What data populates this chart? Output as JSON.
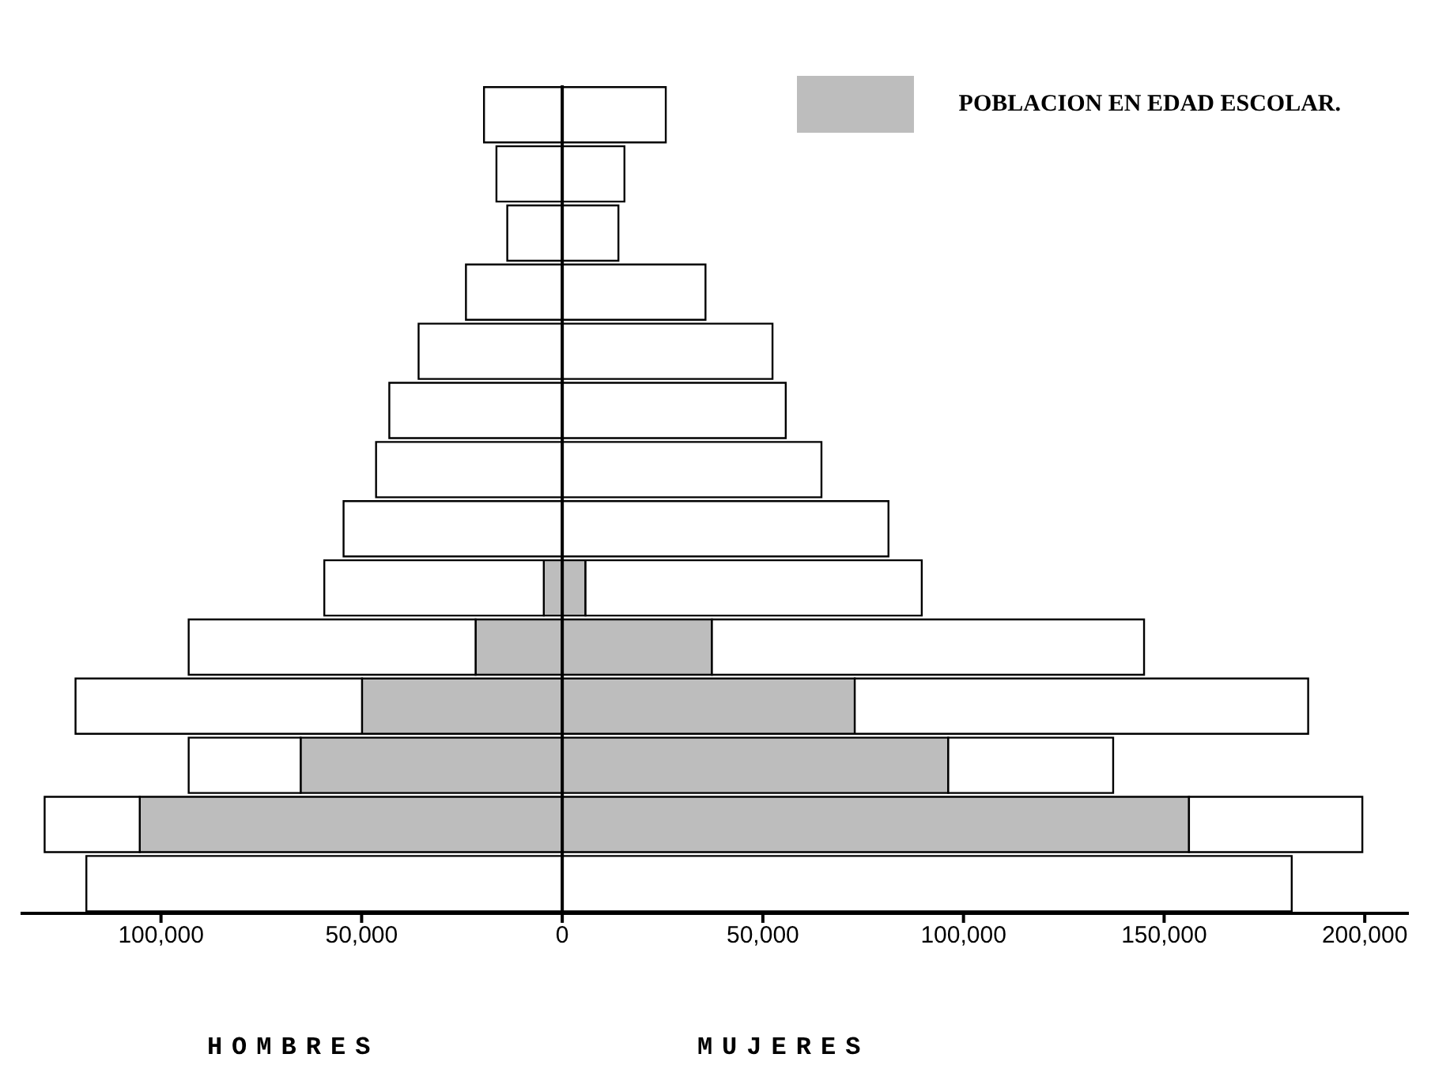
{
  "chart_data": {
    "type": "bar",
    "orientation": "horizontal",
    "stacked": true,
    "categories": [
      null,
      null,
      null,
      null,
      null,
      null,
      null,
      null,
      null,
      null,
      null,
      null,
      null,
      null
    ],
    "series": [
      {
        "name": "POBLACION EN EDAD ESCOLAR.",
        "color": "#bdbdbd",
        "values": [
          null,
          null,
          null,
          null,
          null,
          null,
          null,
          null,
          -4600,
          -21600,
          -49900,
          -65200,
          -105300,
          null
        ]
      },
      {
        "color": "#ffffff",
        "values": [
          -19500,
          -16400,
          -13700,
          -24000,
          -35800,
          -43100,
          -46400,
          -54500,
          -54700,
          -71500,
          -71400,
          -27900,
          -23700,
          -118600
        ]
      },
      {
        "color": "#bdbdbd",
        "values": [
          null,
          null,
          null,
          null,
          null,
          null,
          null,
          null,
          5800,
          37300,
          72900,
          96200,
          156200,
          null
        ]
      },
      {
        "color": "#ffffff",
        "values": [
          25800,
          15500,
          14000,
          35700,
          52400,
          55700,
          64600,
          81300,
          83800,
          107700,
          113000,
          41100,
          43200,
          181800
        ]
      }
    ],
    "xlim": [
      -135000,
      211000
    ],
    "xticks": [
      {
        "value": -100000,
        "label": "100,000"
      },
      {
        "value": -50000,
        "label": "50,000"
      },
      0,
      {
        "value": 50000,
        "label": "50,000"
      },
      {
        "value": 100000,
        "label": "100,000"
      },
      {
        "value": 150000,
        "label": "150,000"
      },
      {
        "value": 200000,
        "label": "200,000"
      }
    ],
    "tick_labels": "x",
    "ref_lines": [
      {
        "axis": "x",
        "value": 0
      }
    ],
    "annotations": [
      "HOMBRES",
      "MUJERES"
    ],
    "legend": "top right",
    "grid": false
  }
}
